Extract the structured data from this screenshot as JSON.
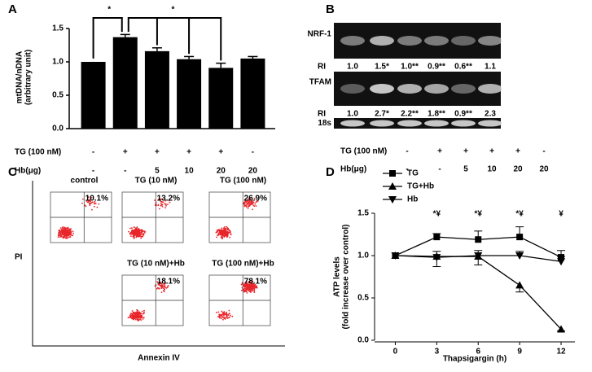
{
  "chart_data": [
    {
      "type": "bar",
      "panel": "A",
      "y_label": [
        "mtDNA/nDNA",
        "(arbitrary unit)"
      ],
      "values": [
        1.0,
        1.37,
        1.16,
        1.04,
        0.91,
        1.05
      ],
      "errors": [
        0.0,
        0.04,
        0.05,
        0.04,
        0.07,
        0.03
      ],
      "color": "#000000",
      "ylim": [
        0,
        1.5
      ],
      "yticks": [
        {
          "value": 0,
          "label": "0.0"
        },
        {
          "value": 0.5,
          "label": "0.5"
        },
        {
          "value": 1.0,
          "label": "1.0"
        },
        {
          "value": 1.5,
          "label": "1.5"
        }
      ],
      "rows": [
        {
          "label": "TG (100 nM)",
          "values": [
            "-",
            "+",
            "+",
            "+",
            "+",
            "-"
          ]
        },
        {
          "label": "Hb(μg)",
          "values": [
            "-",
            "-",
            "5",
            "10",
            "20",
            "20"
          ]
        }
      ],
      "annotations": [
        "*",
        "*"
      ]
    },
    {
      "type": "line",
      "panel": "D",
      "x": [
        0,
        3,
        6,
        9,
        12
      ],
      "xlim": [
        -1.5,
        13
      ],
      "xticks": [
        0,
        3,
        6,
        9,
        12
      ],
      "ylim": [
        0,
        1.5
      ],
      "yticks": [
        {
          "value": 0,
          "label": "0.0"
        },
        {
          "value": 0.5,
          "label": "0.5"
        },
        {
          "value": 1.0,
          "label": "1.0"
        },
        {
          "value": 1.5,
          "label": "1.5"
        }
      ],
      "x_label": "Thapsigargin (h)",
      "y_label": [
        "ATP levels",
        "(fold increase over control)"
      ],
      "series": [
        {
          "name": "TG",
          "color": "#000000",
          "marker": "square",
          "values": [
            1.0,
            1.22,
            1.19,
            1.22,
            0.98
          ],
          "errors": [
            0.0,
            0.04,
            0.1,
            0.12,
            0.08
          ]
        },
        {
          "name": "TG+Hb",
          "color": "#000000",
          "marker": "triangle-up",
          "values": [
            1.0,
            0.99,
            0.99,
            0.65,
            0.13
          ],
          "errors": [
            0.0,
            0.12,
            0.1,
            0.08,
            0.02
          ]
        },
        {
          "name": "Hb",
          "color": "#000000",
          "marker": "triangle-down",
          "values": [
            1.0,
            0.98,
            1.0,
            1.0,
            0.93
          ],
          "errors": [
            0.0,
            0.07,
            0.06,
            0.05,
            0.06
          ]
        }
      ],
      "annotations": [
        {
          "x": 3,
          "text": "*¥"
        },
        {
          "x": 6,
          "text": "*¥"
        },
        {
          "x": 9,
          "text": "*¥"
        },
        {
          "x": 12,
          "text": "¥"
        }
      ]
    }
  ],
  "gel": {
    "panel": "B",
    "bands": [
      {
        "label": "NRF-1",
        "ri_label": "RI",
        "ri": [
          "1.0",
          "1.5*",
          "1.0**",
          "0.9**",
          "0.6**",
          "1.1"
        ]
      },
      {
        "label": "TFAM",
        "ri_label": "RI",
        "ri": [
          "1.0",
          "2.7*",
          "2.2**",
          "1.8**",
          "0.9**",
          "2.3"
        ]
      },
      {
        "label": "18s"
      }
    ],
    "rows": [
      {
        "label": "TG (100 nM)",
        "values": [
          "-",
          "+",
          "+",
          "+",
          "+",
          "-"
        ]
      },
      {
        "label": "Hb(μg)",
        "values": [
          "-",
          "-",
          "5",
          "10",
          "20",
          "20"
        ]
      }
    ]
  },
  "flow": {
    "panel": "C",
    "y_label": "PI",
    "x_label": "Annexin IV",
    "plots": [
      {
        "title": "control",
        "percent": "10.1%"
      },
      {
        "title": "TG (10 nM)",
        "percent": "13.2%"
      },
      {
        "title": "TG (100 nM)",
        "percent": "26.9%"
      },
      {
        "title": "TG (10 nM)+Hb",
        "percent": "18.1%"
      },
      {
        "title": "TG (100 nM)+Hb",
        "percent": "78.1%"
      }
    ]
  }
}
